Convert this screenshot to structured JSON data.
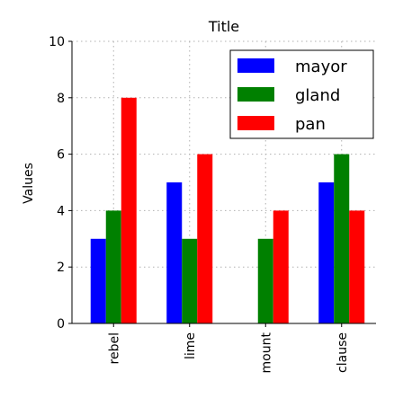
{
  "chart_data": {
    "type": "bar",
    "title": "Title",
    "xlabel": "",
    "ylabel": "Values",
    "categories": [
      "rebel",
      "lime",
      "mount",
      "clause"
    ],
    "series": [
      {
        "name": "mayor",
        "color": "#0000ff",
        "values": [
          3,
          5,
          0,
          5
        ]
      },
      {
        "name": "gland",
        "color": "#008000",
        "values": [
          4,
          3,
          3,
          6
        ]
      },
      {
        "name": "pan",
        "color": "#ff0000",
        "values": [
          8,
          6,
          4,
          4
        ]
      }
    ],
    "ylim": [
      0,
      10
    ],
    "yticks": [
      0,
      2,
      4,
      6,
      8,
      10
    ],
    "grid": true,
    "legend_position": "top-right",
    "tick_label_rotation": "vertical"
  }
}
